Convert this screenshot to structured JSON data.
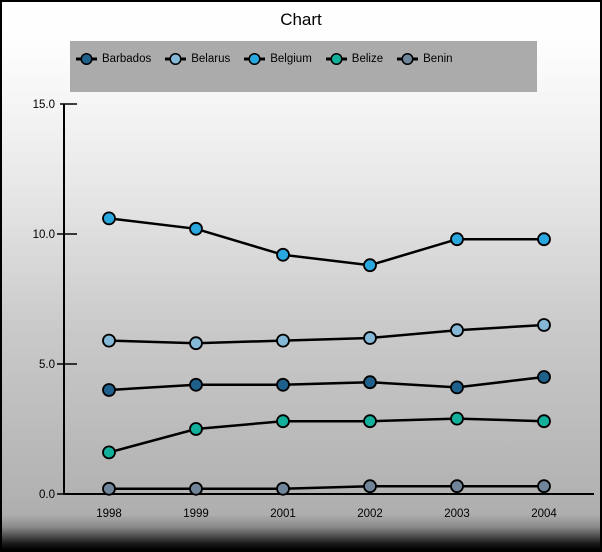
{
  "window": {
    "title": "Chart"
  },
  "colors": {
    "legend_background": "#ababab",
    "axis": "#000000",
    "line": "#000000",
    "frame_border": "#000000"
  },
  "chart_data": {
    "type": "line",
    "title": "Chart",
    "categories": [
      "1998",
      "1999",
      "2001",
      "2002",
      "2003",
      "2004"
    ],
    "series": [
      {
        "name": "Barbados",
        "color": "#1f618d",
        "values": [
          4.0,
          4.2,
          4.2,
          4.3,
          4.1,
          4.5
        ]
      },
      {
        "name": "Belarus",
        "color": "#85b8d6",
        "values": [
          5.9,
          5.8,
          5.9,
          6.0,
          6.3,
          6.5
        ]
      },
      {
        "name": "Belgium",
        "color": "#29a8e0",
        "values": [
          10.6,
          10.2,
          9.2,
          8.8,
          9.8,
          9.8
        ]
      },
      {
        "name": "Belize",
        "color": "#12b09a",
        "values": [
          1.6,
          2.5,
          2.8,
          2.8,
          2.9,
          2.8
        ]
      },
      {
        "name": "Benin",
        "color": "#708599",
        "values": [
          0.2,
          0.2,
          0.2,
          0.3,
          0.3,
          0.3
        ]
      }
    ],
    "xlabel": "",
    "ylabel": "",
    "ylim": [
      0,
      15
    ],
    "yticks": [
      {
        "label": "0.0",
        "value": 0
      },
      {
        "label": "5.0",
        "value": 5
      },
      {
        "label": "10.0",
        "value": 10
      },
      {
        "label": "15.0",
        "value": 15
      }
    ],
    "grid": false,
    "legend_position": "top",
    "marker": "circle"
  }
}
